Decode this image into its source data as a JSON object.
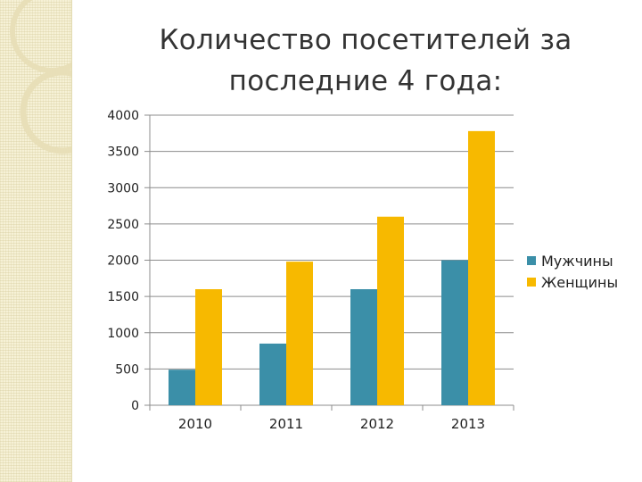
{
  "title": {
    "line1": "Количество посетителей за",
    "line2": "последние 4 года:"
  },
  "chart_data": {
    "type": "bar",
    "title": "Количество посетителей за последние 4 года:",
    "categories": [
      "2010",
      "2011",
      "2012",
      "2013"
    ],
    "series": [
      {
        "name": "Мужчины",
        "values": [
          490,
          850,
          1600,
          2000
        ],
        "color": "#3b8fa8"
      },
      {
        "name": "Женщины",
        "values": [
          1600,
          1980,
          2600,
          3780
        ],
        "color": "#f7b900"
      }
    ],
    "ylim": [
      0,
      4000
    ],
    "yticks": [
      "0",
      "500",
      "1000",
      "1500",
      "2000",
      "2500",
      "3000",
      "3500",
      "4000"
    ],
    "xlabel": "",
    "ylabel": "",
    "grid": true,
    "legend": "right"
  }
}
